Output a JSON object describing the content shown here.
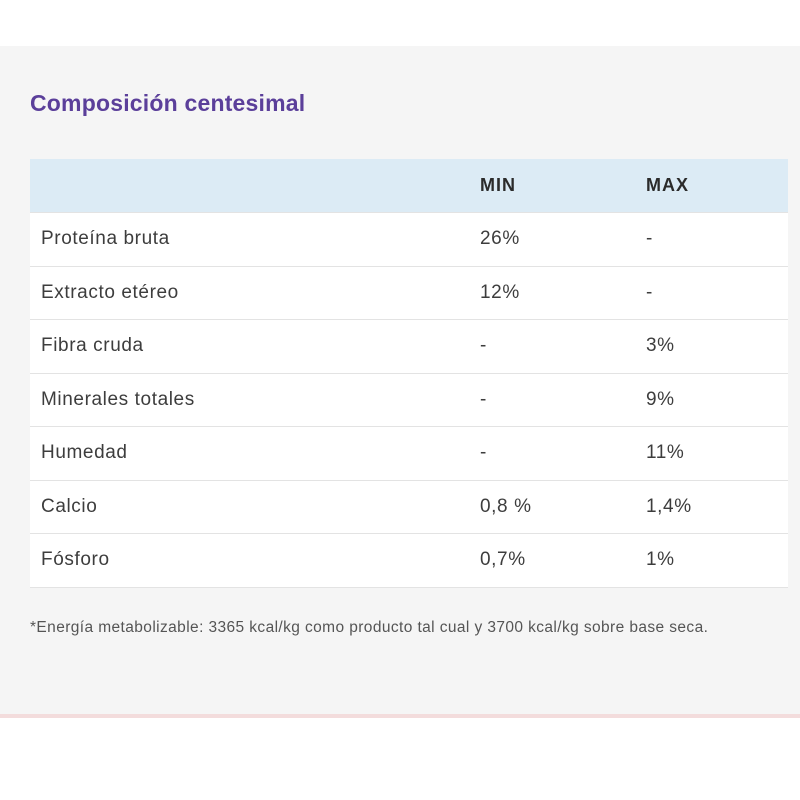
{
  "section": {
    "title": "Composición centesimal",
    "table": {
      "headers": [
        "",
        "MIN",
        "MAX"
      ],
      "rows": [
        {
          "name": "Proteína bruta",
          "min": "26%",
          "max": "-"
        },
        {
          "name": "Extracto etéreo",
          "min": "12%",
          "max": "-"
        },
        {
          "name": "Fibra cruda",
          "min": "-",
          "max": "3%"
        },
        {
          "name": "Minerales totales",
          "min": "-",
          "max": "9%"
        },
        {
          "name": "Humedad",
          "min": "-",
          "max": "11%"
        },
        {
          "name": "Calcio",
          "min": "0,8 %",
          "max": "1,4%"
        },
        {
          "name": "Fósforo",
          "min": "0,7%",
          "max": "1%"
        }
      ]
    },
    "note": "*Energía metabolizable: 3365 kcal/kg como producto tal cual y 3700 kcal/kg sobre base seca."
  },
  "colors": {
    "title": "#5b3f9a",
    "header_bg": "#dcebf5",
    "panel_bg": "#f5f5f5"
  }
}
